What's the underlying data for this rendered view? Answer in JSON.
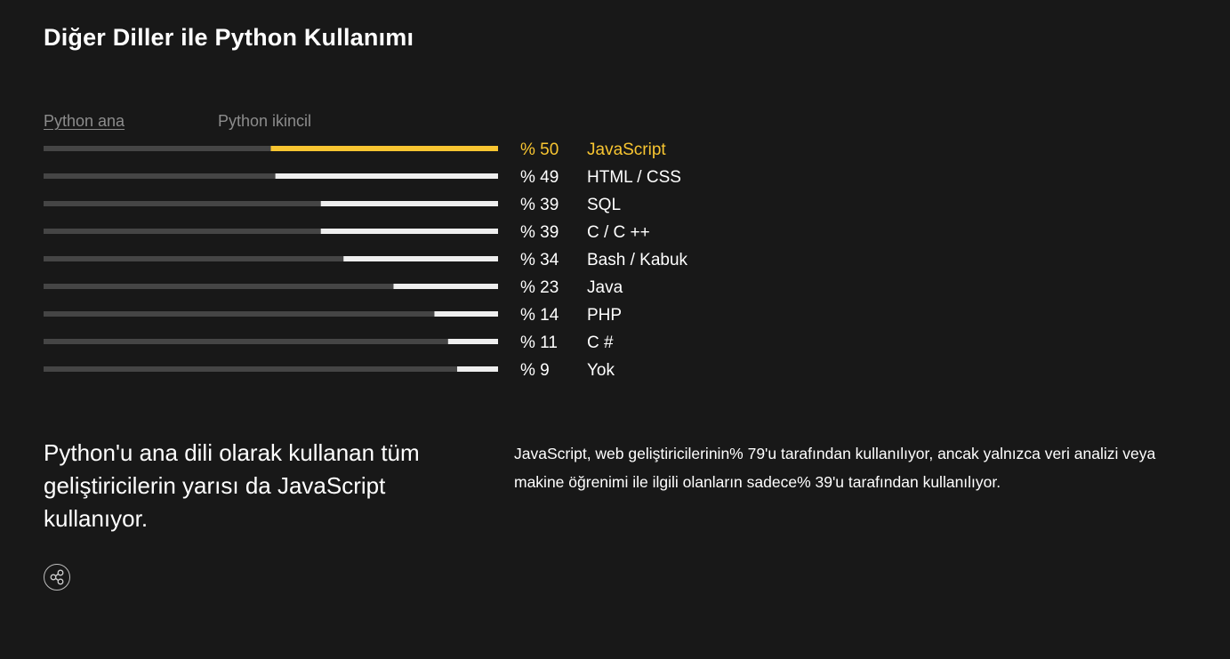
{
  "page": {
    "title": "Diğer Diller ile Python Kullanımı",
    "tabs": {
      "primary": "Python ana",
      "secondary": "Python ikincil"
    },
    "summary": "Python'u ana dili olarak kullanan tüm geliştiricilerin yarısı da JavaScript kullanıyor.",
    "detail": "JavaScript, web geliştiricilerinin% 79'u tarafından kullanılıyor, ancak yalnızca veri analizi veya makine öğrenimi ile ilgili olanların sadece% 39'u tarafından kullanılıyor.",
    "share_icon": "share-icon"
  },
  "chart_data": {
    "type": "bar",
    "orientation": "horizontal",
    "categories": [
      "JavaScript",
      "HTML / CSS",
      "SQL",
      "C / C ++",
      "Bash / Kabuk",
      "Java",
      "PHP",
      "C #",
      "Yok"
    ],
    "values": [
      50,
      49,
      39,
      39,
      34,
      23,
      14,
      11,
      9
    ],
    "value_labels": [
      "% 50",
      "% 49",
      "% 39",
      "% 39",
      "% 34",
      "% 23",
      "% 14",
      "% 11",
      "% 9"
    ],
    "xlim": [
      0,
      100
    ],
    "highlight_index": 0,
    "colors": {
      "track": "#454545",
      "fill": "#eeeeee",
      "highlight": "#f8c531"
    }
  }
}
